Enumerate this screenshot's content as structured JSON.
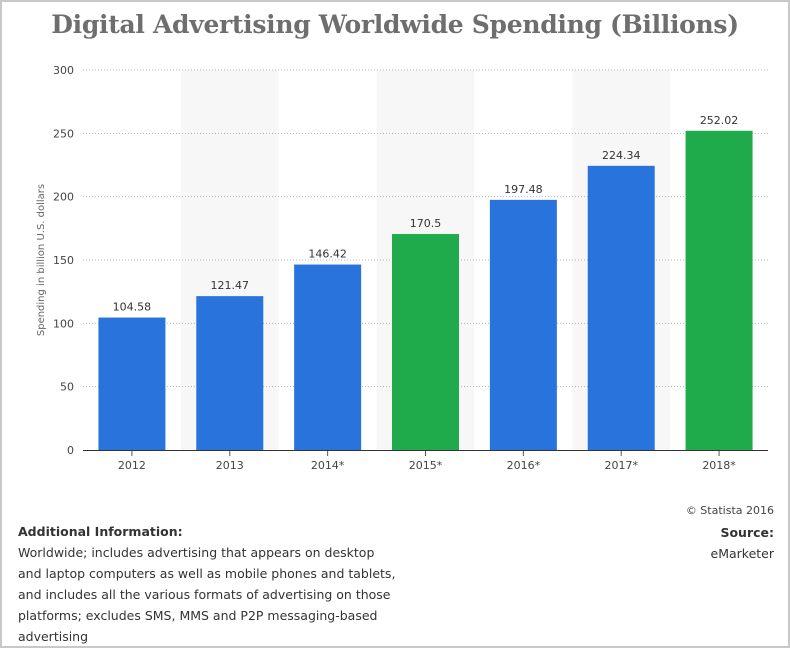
{
  "chart_data": {
    "type": "bar",
    "title": "Digital Advertising Worldwide Spending (Billions)",
    "ylabel": "Spending in billion U.S. dollars",
    "xlabel": "",
    "categories": [
      "2012",
      "2013",
      "2014*",
      "2015*",
      "2016*",
      "2017*",
      "2018*"
    ],
    "values": [
      104.58,
      121.47,
      146.42,
      170.5,
      197.48,
      224.34,
      252.02
    ],
    "value_labels": [
      "104.58",
      "121.47",
      "146.42",
      "170.5",
      "197.48",
      "224.34",
      "252.02"
    ],
    "bar_colors": [
      "#2874dc",
      "#2874dc",
      "#2874dc",
      "#1fab4b",
      "#2874dc",
      "#2874dc",
      "#1fab4b"
    ],
    "ylim": [
      0,
      300
    ],
    "yticks": [
      0,
      50,
      100,
      150,
      200,
      250,
      300
    ],
    "grid": true,
    "legend": "none"
  },
  "footer": {
    "copyright": "© Statista 2016",
    "source_heading": "Source:",
    "source_value": "eMarketer",
    "info_heading": "Additional Information:",
    "info_text": "Worldwide; includes advertising that appears on desktop and laptop computers as well as mobile phones and tablets, and includes all the various formats of advertising on those platforms; excludes SMS, MMS and P2P messaging-based advertising"
  },
  "colors": {
    "blue_bar": "#2874dc",
    "green_bar": "#1fab4b",
    "band": "#f7f7f7",
    "title": "#6e6e6e"
  }
}
